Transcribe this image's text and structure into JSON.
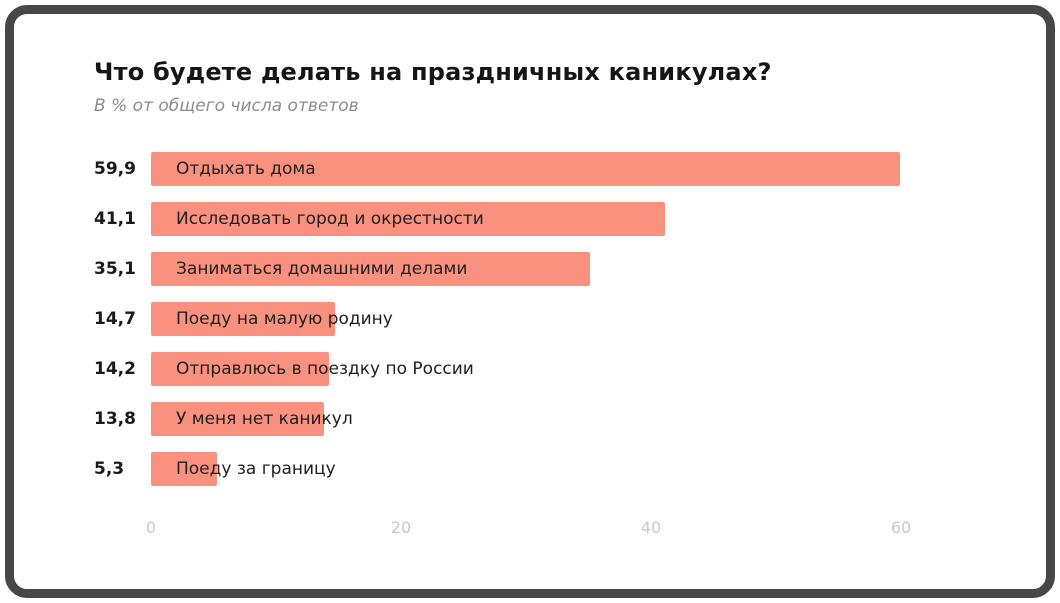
{
  "card": {
    "title": "Что будете делать на праздничных каникулах?",
    "subtitle": "В % от общего числа ответов"
  },
  "chart_data": {
    "type": "bar",
    "orientation": "horizontal",
    "title": "Что будете делать на праздничных каникулах?",
    "subtitle": "В % от общего числа ответов",
    "categories": [
      "Отдыхать дома",
      "Исследовать город и окрестности",
      "Заниматься домашними делами",
      "Поеду на малую родину",
      "Отправлюсь в поездку по России",
      "У меня нет каникул",
      "Поеду за границу"
    ],
    "values": [
      59.9,
      41.1,
      35.1,
      14.7,
      14.2,
      13.8,
      5.3
    ],
    "value_labels": [
      "59,9",
      "41,1",
      "35,1",
      "14,7",
      "14,2",
      "13,8",
      "5,3"
    ],
    "x_ticks": [
      0,
      20,
      40,
      60
    ],
    "xlim": [
      0,
      60
    ],
    "bar_color": "#F9917E",
    "grid": false,
    "legend": false,
    "xlabel": "",
    "ylabel": ""
  }
}
